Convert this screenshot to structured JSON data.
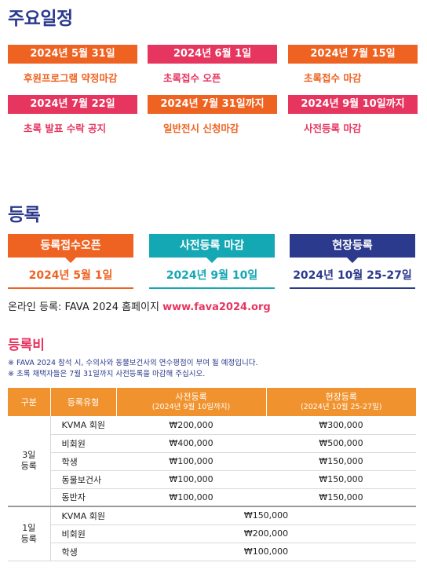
{
  "schedule": {
    "title": "주요일정",
    "items": [
      {
        "date": "2024년 5월 31일",
        "desc": "후원프로그램 약정마감",
        "color": "orange"
      },
      {
        "date": "2024년 6월 1일",
        "desc": "초록접수 오픈",
        "color": "pink"
      },
      {
        "date": "2024년 7월 15일",
        "desc": "초록접수 마감",
        "color": "orange"
      },
      {
        "date": "2024년 7월 22일",
        "desc": "초록 발표 수락 공지",
        "color": "pink"
      },
      {
        "date": "2024년 7월 31일까지",
        "desc": "일반전시 신청마감",
        "color": "orange"
      },
      {
        "date": "2024년 9월 10일까지",
        "desc": "사전등록 마감",
        "color": "pink"
      }
    ]
  },
  "registration": {
    "title": "등록",
    "steps": [
      {
        "label": "등록접수오픈",
        "date": "2024년 5월 1일",
        "color": "#ef6322"
      },
      {
        "label": "사전등록 마감",
        "date": "2024년 9월 10일",
        "color": "#14a8b4"
      },
      {
        "label": "현장등록",
        "date": "2024년 10월 25-27일",
        "color": "#2b3a8c"
      }
    ],
    "online_prefix": "온라인 등록: FAVA 2024 홈페이지 ",
    "online_url": "www.fava2024.org"
  },
  "fees": {
    "title": "등록비",
    "notes": [
      "※ FAVA 2024 참석 시, 수의사와 동물보건사의 연수평점이 부여 될 예정입니다.",
      "※ 초록 채택자들은 7월 31일까지 사전등록을 마감해 주십시오."
    ],
    "headers": {
      "group": "구분",
      "type": "등록유형",
      "pre": "사전등록",
      "pre_sub": "(2024년 9월 10일까지)",
      "onsite": "현장등록",
      "onsite_sub": "(2024년 10월 25-27일)"
    },
    "group1": {
      "label_line1": "3일",
      "label_line2": "등록",
      "rows": [
        {
          "type": "KVMA 회원",
          "pre": "₩200,000",
          "onsite": "₩300,000"
        },
        {
          "type": "비회원",
          "pre": "₩400,000",
          "onsite": "₩500,000"
        },
        {
          "type": "학생",
          "pre": "₩100,000",
          "onsite": "₩150,000"
        },
        {
          "type": "동물보건사",
          "pre": "₩100,000",
          "onsite": "₩150,000"
        },
        {
          "type": "동반자",
          "pre": "₩100,000",
          "onsite": "₩150,000"
        }
      ]
    },
    "group2": {
      "label_line1": "1일",
      "label_line2": "등록",
      "rows": [
        {
          "type": "KVMA 회원",
          "fee": "₩150,000"
        },
        {
          "type": "비회원",
          "fee": "₩200,000"
        },
        {
          "type": "학생",
          "fee": "₩100,000"
        }
      ]
    }
  }
}
